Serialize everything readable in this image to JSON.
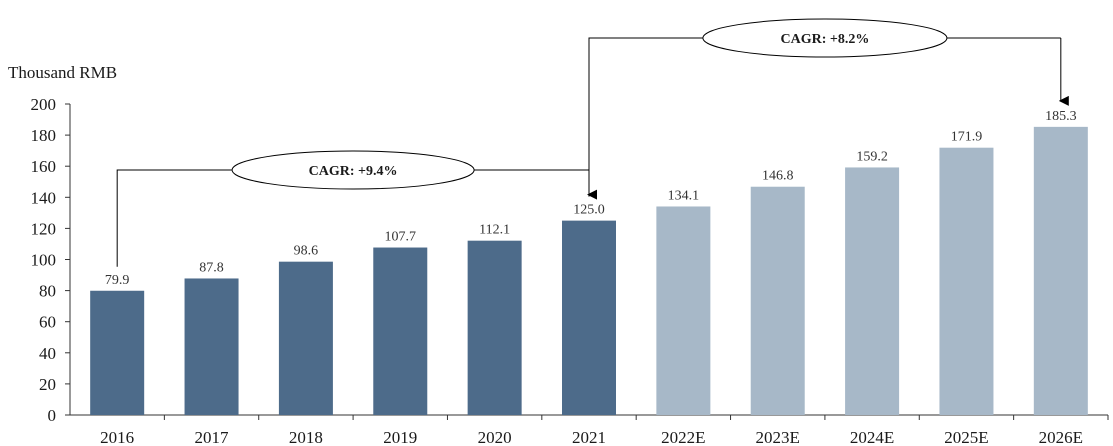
{
  "chart_data": {
    "type": "bar",
    "unit_label": "Thousand RMB",
    "categories": [
      "2016",
      "2017",
      "2018",
      "2019",
      "2020",
      "2021",
      "2022E",
      "2023E",
      "2024E",
      "2025E",
      "2026E"
    ],
    "values": [
      79.9,
      87.8,
      98.6,
      107.7,
      112.1,
      125.0,
      134.1,
      146.8,
      159.2,
      171.9,
      185.3
    ],
    "value_labels": [
      "79.9",
      "87.8",
      "98.6",
      "107.7",
      "112.1",
      "125.0",
      "134.1",
      "146.8",
      "159.2",
      "171.9",
      "185.3"
    ],
    "actual_count": 6,
    "ylim": [
      0,
      200
    ],
    "yticks": [
      "0",
      "20",
      "40",
      "60",
      "80",
      "100",
      "120",
      "140",
      "160",
      "180",
      "200"
    ],
    "colors": {
      "actual": "#4d6b8a",
      "forecast": "#a7b8c8",
      "axis": "#333333"
    },
    "annotations": [
      {
        "text": "CAGR: +9.4%",
        "from": "2016",
        "to": "2021"
      },
      {
        "text": "CAGR: +8.2%",
        "from": "2021",
        "to": "2026E"
      }
    ]
  }
}
